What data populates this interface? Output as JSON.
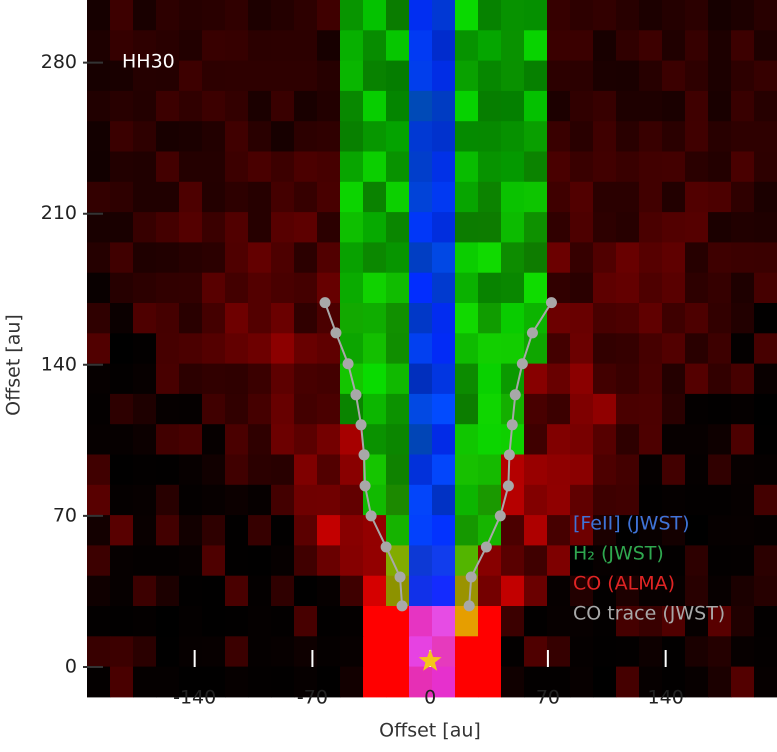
{
  "chart_data": {
    "type": "scatter",
    "annotation": "HH30",
    "x_label": "Offset [au]",
    "y_label": "Offset [au]",
    "xlim": [
      -204,
      205
    ],
    "ylim": [
      0,
      309
    ],
    "xticks": [
      -140,
      -70,
      0,
      70,
      140
    ],
    "yticks": [
      0,
      70,
      140,
      210,
      280
    ],
    "layers": [
      {
        "name": "[FeII] (JWST)",
        "color": "#3f73d8"
      },
      {
        "name": "H₂ (JWST)",
        "color": "#2fa84f"
      },
      {
        "name": "CO (ALMA)",
        "color": "#e02424"
      }
    ],
    "series": [
      {
        "name": "CO trace (JWST)",
        "color": "#a8a8a8",
        "x": [
          -62.5,
          -56,
          -48.8,
          -44.1,
          -41.1,
          -39.3,
          -38.7,
          -35.1,
          -26.2,
          -17.9,
          -16.7,
          null,
          72.1,
          60.8,
          54.8,
          50.6,
          48.8,
          47.1,
          46.5,
          41.7,
          33.4,
          24.4,
          23.2
        ],
        "values": [
          168.8,
          154.8,
          140.5,
          126.1,
          112.2,
          98.3,
          83.9,
          70,
          55.6,
          41.7,
          28.3,
          null,
          168.8,
          154.8,
          140.5,
          126.1,
          112.2,
          98.3,
          83.9,
          70,
          55.6,
          41.7,
          28.3
        ]
      }
    ]
  }
}
